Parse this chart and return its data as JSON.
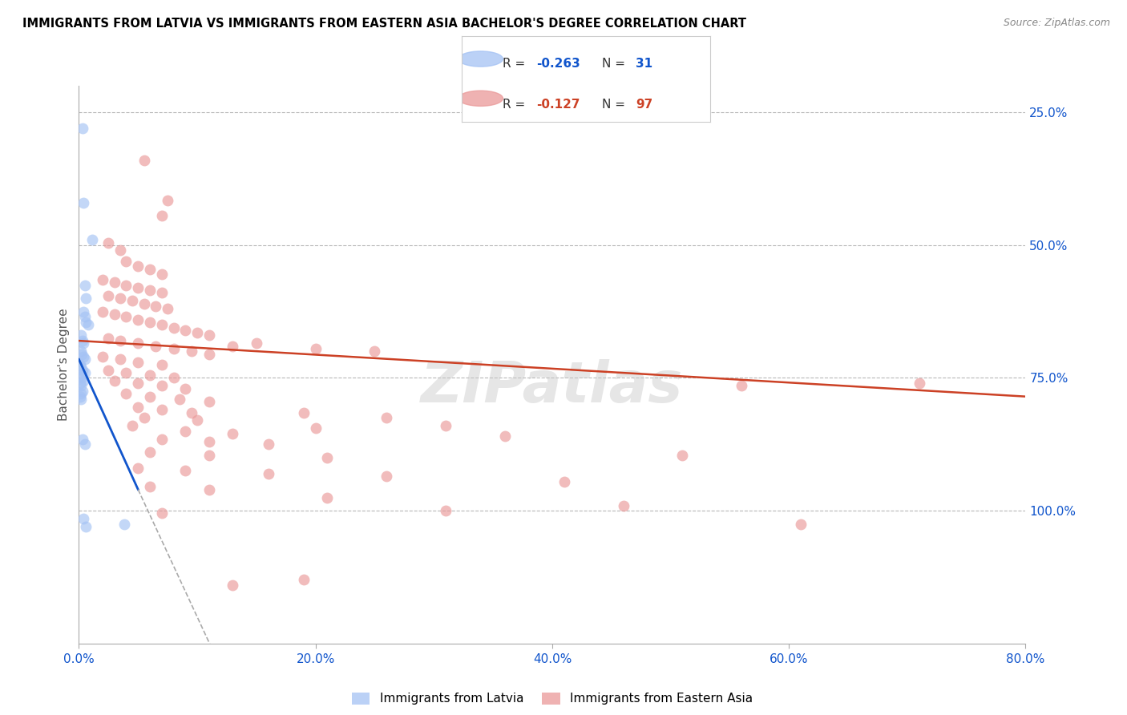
{
  "title": "IMMIGRANTS FROM LATVIA VS IMMIGRANTS FROM EASTERN ASIA BACHELOR'S DEGREE CORRELATION CHART",
  "source_text": "Source: ZipAtlas.com",
  "ylabel": "Bachelor's Degree",
  "x_tick_values": [
    0.0,
    20.0,
    40.0,
    60.0,
    80.0
  ],
  "y_tick_values": [
    25.0,
    50.0,
    75.0,
    100.0
  ],
  "xlim": [
    0.0,
    80.0
  ],
  "ylim": [
    0.0,
    105.0
  ],
  "legend_color1": "#a4c2f4",
  "legend_color2": "#ea9999",
  "color_blue": "#a4c2f4",
  "color_pink": "#ea9999",
  "color_blue_line": "#1155cc",
  "color_pink_line": "#cc4125",
  "background_color": "#ffffff",
  "grid_color": "#b7b7b7",
  "title_color": "#000000",
  "axis_label_color": "#1155cc",
  "blue_dots": [
    [
      0.3,
      97.0
    ],
    [
      0.4,
      83.0
    ],
    [
      1.1,
      76.0
    ],
    [
      0.5,
      67.5
    ],
    [
      0.6,
      65.0
    ],
    [
      0.4,
      62.5
    ],
    [
      0.5,
      61.5
    ],
    [
      0.6,
      60.5
    ],
    [
      0.8,
      60.0
    ],
    [
      0.2,
      58.0
    ],
    [
      0.3,
      57.0
    ],
    [
      0.4,
      56.5
    ],
    [
      0.15,
      55.0
    ],
    [
      0.25,
      54.5
    ],
    [
      0.35,
      54.0
    ],
    [
      0.5,
      53.5
    ],
    [
      0.1,
      52.5
    ],
    [
      0.2,
      52.0
    ],
    [
      0.3,
      51.5
    ],
    [
      0.5,
      51.0
    ],
    [
      0.15,
      50.5
    ],
    [
      0.25,
      50.0
    ],
    [
      0.4,
      49.5
    ],
    [
      0.1,
      49.0
    ],
    [
      0.2,
      48.5
    ],
    [
      0.3,
      47.5
    ],
    [
      0.15,
      47.0
    ],
    [
      0.1,
      46.5
    ],
    [
      0.2,
      46.0
    ],
    [
      0.3,
      38.5
    ],
    [
      0.5,
      37.5
    ],
    [
      0.4,
      23.5
    ],
    [
      0.6,
      22.0
    ],
    [
      3.8,
      22.5
    ]
  ],
  "pink_dots": [
    [
      5.5,
      91.0
    ],
    [
      7.5,
      83.5
    ],
    [
      7.0,
      80.5
    ],
    [
      2.5,
      75.5
    ],
    [
      3.5,
      74.0
    ],
    [
      4.0,
      72.0
    ],
    [
      5.0,
      71.0
    ],
    [
      6.0,
      70.5
    ],
    [
      7.0,
      69.5
    ],
    [
      2.0,
      68.5
    ],
    [
      3.0,
      68.0
    ],
    [
      4.0,
      67.5
    ],
    [
      5.0,
      67.0
    ],
    [
      6.0,
      66.5
    ],
    [
      7.0,
      66.0
    ],
    [
      2.5,
      65.5
    ],
    [
      3.5,
      65.0
    ],
    [
      4.5,
      64.5
    ],
    [
      5.5,
      64.0
    ],
    [
      6.5,
      63.5
    ],
    [
      7.5,
      63.0
    ],
    [
      2.0,
      62.5
    ],
    [
      3.0,
      62.0
    ],
    [
      4.0,
      61.5
    ],
    [
      5.0,
      61.0
    ],
    [
      6.0,
      60.5
    ],
    [
      7.0,
      60.0
    ],
    [
      8.0,
      59.5
    ],
    [
      9.0,
      59.0
    ],
    [
      10.0,
      58.5
    ],
    [
      11.0,
      58.0
    ],
    [
      2.5,
      57.5
    ],
    [
      3.5,
      57.0
    ],
    [
      5.0,
      56.5
    ],
    [
      6.5,
      56.0
    ],
    [
      8.0,
      55.5
    ],
    [
      9.5,
      55.0
    ],
    [
      11.0,
      54.5
    ],
    [
      13.0,
      56.0
    ],
    [
      2.0,
      54.0
    ],
    [
      3.5,
      53.5
    ],
    [
      5.0,
      53.0
    ],
    [
      7.0,
      52.5
    ],
    [
      15.0,
      56.5
    ],
    [
      20.0,
      55.5
    ],
    [
      25.0,
      55.0
    ],
    [
      2.5,
      51.5
    ],
    [
      4.0,
      51.0
    ],
    [
      6.0,
      50.5
    ],
    [
      8.0,
      50.0
    ],
    [
      3.0,
      49.5
    ],
    [
      5.0,
      49.0
    ],
    [
      7.0,
      48.5
    ],
    [
      9.0,
      48.0
    ],
    [
      4.0,
      47.0
    ],
    [
      6.0,
      46.5
    ],
    [
      8.5,
      46.0
    ],
    [
      11.0,
      45.5
    ],
    [
      5.0,
      44.5
    ],
    [
      7.0,
      44.0
    ],
    [
      9.5,
      43.5
    ],
    [
      5.5,
      42.5
    ],
    [
      10.0,
      42.0
    ],
    [
      20.0,
      40.5
    ],
    [
      26.0,
      42.5
    ],
    [
      4.5,
      41.0
    ],
    [
      9.0,
      40.0
    ],
    [
      13.0,
      39.5
    ],
    [
      19.0,
      43.5
    ],
    [
      7.0,
      38.5
    ],
    [
      11.0,
      38.0
    ],
    [
      16.0,
      37.5
    ],
    [
      31.0,
      41.0
    ],
    [
      6.0,
      36.0
    ],
    [
      11.0,
      35.5
    ],
    [
      21.0,
      35.0
    ],
    [
      36.0,
      39.0
    ],
    [
      5.0,
      33.0
    ],
    [
      9.0,
      32.5
    ],
    [
      16.0,
      32.0
    ],
    [
      26.0,
      31.5
    ],
    [
      6.0,
      29.5
    ],
    [
      11.0,
      29.0
    ],
    [
      21.0,
      27.5
    ],
    [
      7.0,
      24.5
    ],
    [
      31.0,
      25.0
    ],
    [
      13.0,
      11.0
    ],
    [
      19.0,
      12.0
    ],
    [
      56.0,
      48.5
    ],
    [
      41.0,
      30.5
    ],
    [
      46.0,
      26.0
    ],
    [
      51.0,
      35.5
    ],
    [
      61.0,
      22.5
    ],
    [
      71.0,
      49.0
    ]
  ],
  "blue_line": [
    [
      0.0,
      53.5
    ],
    [
      5.0,
      29.0
    ]
  ],
  "blue_dashed_line": [
    [
      5.0,
      29.0
    ],
    [
      35.0,
      -115.0
    ]
  ],
  "pink_line": [
    [
      0.0,
      57.0
    ],
    [
      80.0,
      46.5
    ]
  ]
}
